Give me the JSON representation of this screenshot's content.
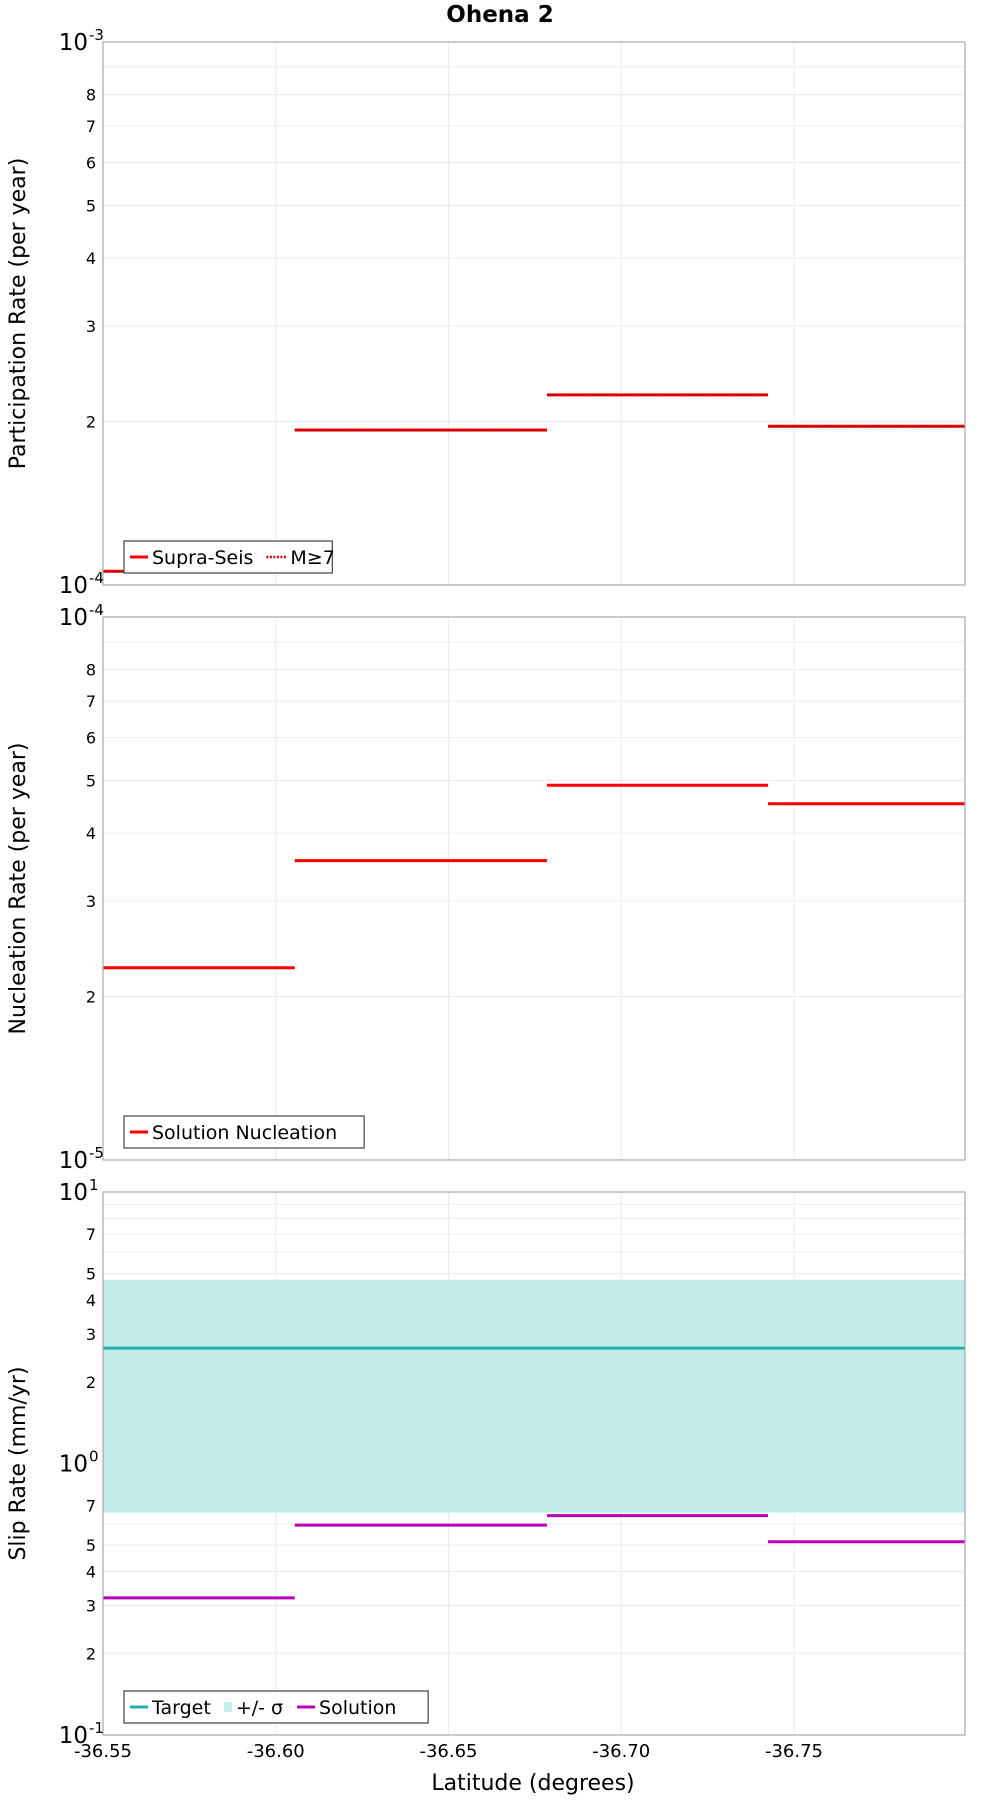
{
  "chart_data": {
    "type": "line",
    "title": "Ohena 2",
    "xlabel": "Latitude (degrees)",
    "x_ticks": [
      "-36.55",
      "-36.60",
      "-36.65",
      "-36.70",
      "-36.75"
    ],
    "x_tick_values": [
      -36.55,
      -36.6,
      -36.65,
      -36.7,
      -36.75
    ],
    "xlim": [
      -36.55,
      -36.7995
    ],
    "x_reversed": true,
    "grid": true,
    "panels": [
      {
        "type": "line",
        "ylabel": "Participation Rate (per year)",
        "yscale": "log",
        "ylim": [
          0.0001,
          0.001
        ],
        "major_ticks": [
          {
            "base": "10",
            "exp": "-4"
          },
          {
            "base": "10",
            "exp": "-3"
          }
        ],
        "minor_ticks": [
          "2",
          "3",
          "4",
          "5",
          "6",
          "7",
          "8"
        ],
        "legend": [
          "Supra-Seis",
          "M≥7"
        ],
        "legend_position": "bottom-left",
        "series": [
          {
            "name": "Supra-Seis",
            "color": "#ff0000",
            "style": "solid",
            "segments": [
              {
                "x": [
                  -36.55,
                  -36.6055
                ],
                "y": 0.000106
              },
              {
                "x": [
                  -36.6055,
                  -36.6785
                ],
                "y": 0.000193
              },
              {
                "x": [
                  -36.6785,
                  -36.7425
                ],
                "y": 0.000224
              },
              {
                "x": [
                  -36.7425,
                  -36.7995
                ],
                "y": 0.000196
              }
            ]
          },
          {
            "name": "M≥7",
            "color": "#ff0000",
            "style": "dotted",
            "segments": [
              {
                "x": [
                  -36.55,
                  -36.6055
                ],
                "y": 0.000106
              },
              {
                "x": [
                  -36.6055,
                  -36.6785
                ],
                "y": 0.000193
              },
              {
                "x": [
                  -36.6785,
                  -36.7425
                ],
                "y": 0.000224
              },
              {
                "x": [
                  -36.7425,
                  -36.7995
                ],
                "y": 0.000196
              }
            ]
          }
        ]
      },
      {
        "type": "line",
        "ylabel": "Nucleation Rate (per year)",
        "yscale": "log",
        "ylim": [
          1e-05,
          0.0001
        ],
        "major_ticks": [
          {
            "base": "10",
            "exp": "-5"
          },
          {
            "base": "10",
            "exp": "-4"
          }
        ],
        "minor_ticks": [
          "2",
          "3",
          "4",
          "5",
          "6",
          "7",
          "8"
        ],
        "legend": [
          "Solution Nucleation"
        ],
        "legend_position": "bottom-left",
        "series": [
          {
            "name": "Solution Nucleation",
            "color": "#ff0000",
            "style": "solid",
            "segments": [
              {
                "x": [
                  -36.55,
                  -36.6055
                ],
                "y": 2.26e-05
              },
              {
                "x": [
                  -36.6055,
                  -36.6785
                ],
                "y": 3.56e-05
              },
              {
                "x": [
                  -36.6785,
                  -36.7425
                ],
                "y": 4.9e-05
              },
              {
                "x": [
                  -36.7425,
                  -36.7995
                ],
                "y": 4.53e-05
              }
            ]
          }
        ]
      },
      {
        "type": "line",
        "ylabel": "Slip Rate (mm/yr)",
        "yscale": "log",
        "ylim": [
          0.1,
          10
        ],
        "major_ticks": [
          {
            "base": "10",
            "exp": "-1"
          },
          {
            "base": "10",
            "exp": "0"
          },
          {
            "base": "10",
            "exp": "1"
          }
        ],
        "minor_ticks": [
          "2",
          "3",
          "4",
          "5",
          "7",
          "2",
          "3",
          "4",
          "5",
          "7"
        ],
        "minor_tick_values": [
          0.2,
          0.3,
          0.4,
          0.5,
          0.7,
          2,
          3,
          4,
          5,
          7
        ],
        "legend": [
          "Target",
          "+/- σ",
          "Solution"
        ],
        "legend_position": "bottom-left",
        "band": {
          "name": "+/- σ",
          "color": "#c2ecea",
          "y_low": 0.66,
          "y_high": 4.75
        },
        "series": [
          {
            "name": "Target",
            "color": "#20b2aa",
            "style": "solid",
            "segments": [
              {
                "x": [
                  -36.55,
                  -36.7995
                ],
                "y": 2.66
              }
            ]
          },
          {
            "name": "Solution",
            "color": "#bb00bb",
            "style": "solid",
            "segments": [
              {
                "x": [
                  -36.55,
                  -36.6055
                ],
                "y": 0.32
              },
              {
                "x": [
                  -36.6055,
                  -36.6785
                ],
                "y": 0.593
              },
              {
                "x": [
                  -36.6785,
                  -36.7425
                ],
                "y": 0.643
              },
              {
                "x": [
                  -36.7425,
                  -36.7995
                ],
                "y": 0.515
              }
            ]
          }
        ]
      }
    ]
  }
}
